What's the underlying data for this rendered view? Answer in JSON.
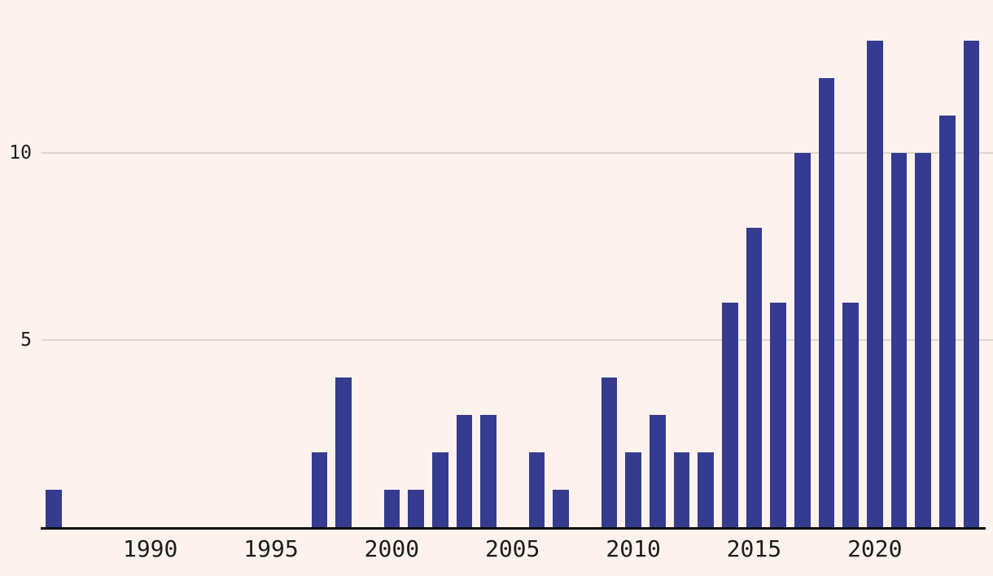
{
  "chart_data": {
    "type": "bar",
    "title": "",
    "xlabel": "",
    "ylabel": "",
    "x": [
      1986,
      1987,
      1988,
      1989,
      1990,
      1991,
      1992,
      1993,
      1994,
      1995,
      1996,
      1997,
      1998,
      1999,
      2000,
      2001,
      2002,
      2003,
      2004,
      2005,
      2006,
      2007,
      2008,
      2009,
      2010,
      2011,
      2012,
      2013,
      2014,
      2015,
      2016,
      2017,
      2018,
      2019,
      2020,
      2021,
      2022,
      2023,
      2024
    ],
    "values": [
      1,
      0,
      0,
      0,
      0,
      0,
      0,
      0,
      0,
      0,
      0,
      2,
      4,
      0,
      1,
      1,
      2,
      3,
      3,
      0,
      2,
      1,
      0,
      4,
      2,
      3,
      2,
      2,
      6,
      8,
      6,
      10,
      12,
      6,
      13,
      10,
      10,
      11,
      13
    ],
    "yticks": [
      5,
      10
    ],
    "xticks": [
      1990,
      1995,
      2000,
      2005,
      2010,
      2015,
      2020
    ],
    "ylim": [
      0,
      13.5
    ],
    "grid": "horizontal",
    "legend": "none",
    "colors": {
      "bar": "#353b8e",
      "background": "#fdf2ee",
      "gridline": "#ddd8d4",
      "axis": "#0a0a0a",
      "tick_label": "#1c1c1c"
    }
  }
}
